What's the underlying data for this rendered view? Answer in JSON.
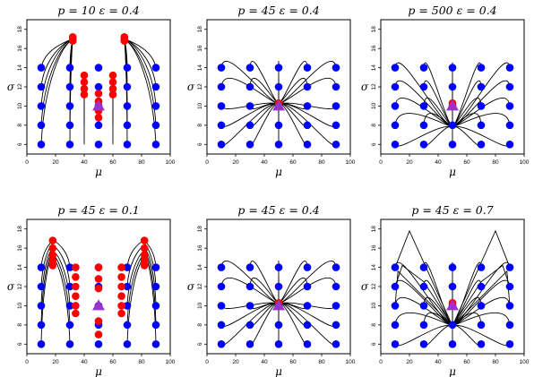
{
  "figure": {
    "background": "#ffffff",
    "colors": {
      "grid_point": "#0000ff",
      "estimate": "#ff0000",
      "truth": "#9933cc",
      "path": "#000000"
    }
  },
  "chart_data": [
    {
      "type": "scatter",
      "title": "p = 10    ε = 0.4",
      "xlabel": "μ",
      "ylabel": "σ",
      "xlim": [
        0,
        100
      ],
      "ylim": [
        5,
        19
      ],
      "xticks": [
        "0",
        "20",
        "40",
        "60",
        "80",
        "100"
      ],
      "yticks": [
        "6",
        "8",
        "10",
        "12",
        "14",
        "16",
        "18"
      ],
      "grid": false,
      "grid_points": {
        "x": [
          10,
          30,
          50,
          70,
          90
        ],
        "y": [
          6,
          8,
          10,
          12,
          14
        ]
      },
      "truth": {
        "x": 50,
        "y": 10
      },
      "estimates": [
        [
          32,
          17.2
        ],
        [
          32,
          17.0
        ],
        [
          32,
          16.8
        ],
        [
          68,
          17.2
        ],
        [
          68,
          17.0
        ],
        [
          68,
          16.8
        ],
        [
          40,
          13.2
        ],
        [
          40,
          12.5
        ],
        [
          40,
          11.8
        ],
        [
          40,
          11.2
        ],
        [
          60,
          13.2
        ],
        [
          60,
          12.5
        ],
        [
          60,
          11.8
        ],
        [
          60,
          11.2
        ],
        [
          50,
          11.3
        ],
        [
          50,
          10.5
        ],
        [
          50,
          9.5
        ],
        [
          50,
          8.8
        ]
      ],
      "paths": [
        [
          [
            10,
            14
          ],
          [
            32,
            17
          ]
        ],
        [
          [
            10,
            12
          ],
          [
            32,
            17
          ]
        ],
        [
          [
            10,
            10
          ],
          [
            31,
            16.9
          ]
        ],
        [
          [
            10,
            8
          ],
          [
            31,
            16.8
          ]
        ],
        [
          [
            10,
            6
          ],
          [
            31,
            16.8
          ]
        ],
        [
          [
            30,
            14
          ],
          [
            32,
            17
          ]
        ],
        [
          [
            30,
            12
          ],
          [
            32,
            17
          ]
        ],
        [
          [
            30,
            10
          ],
          [
            32,
            16.8
          ]
        ],
        [
          [
            30,
            8
          ],
          [
            32,
            16.8
          ]
        ],
        [
          [
            30,
            6
          ],
          [
            32,
            16.8
          ]
        ],
        [
          [
            90,
            14
          ],
          [
            68,
            17
          ]
        ],
        [
          [
            90,
            12
          ],
          [
            68,
            17
          ]
        ],
        [
          [
            90,
            10
          ],
          [
            69,
            16.9
          ]
        ],
        [
          [
            90,
            8
          ],
          [
            69,
            16.8
          ]
        ],
        [
          [
            90,
            6
          ],
          [
            69,
            16.8
          ]
        ],
        [
          [
            70,
            14
          ],
          [
            68,
            17
          ]
        ],
        [
          [
            70,
            12
          ],
          [
            68,
            17
          ]
        ],
        [
          [
            70,
            10
          ],
          [
            68,
            16.8
          ]
        ],
        [
          [
            70,
            8
          ],
          [
            68,
            16.8
          ]
        ],
        [
          [
            70,
            6
          ],
          [
            68,
            16.8
          ]
        ],
        [
          [
            40,
            12
          ],
          [
            40,
            13
          ]
        ],
        [
          [
            40,
            10
          ],
          [
            40,
            12
          ]
        ],
        [
          [
            40,
            8
          ],
          [
            40,
            11.5
          ]
        ],
        [
          [
            40,
            6
          ],
          [
            40,
            11.2
          ]
        ],
        [
          [
            60,
            12
          ],
          [
            60,
            13
          ]
        ],
        [
          [
            60,
            10
          ],
          [
            60,
            12
          ]
        ],
        [
          [
            60,
            8
          ],
          [
            60,
            11.5
          ]
        ],
        [
          [
            60,
            6
          ],
          [
            60,
            11.2
          ]
        ]
      ]
    },
    {
      "type": "scatter",
      "title": "p = 45    ε = 0.4",
      "xlabel": "μ",
      "ylabel": "σ",
      "xlim": [
        0,
        100
      ],
      "ylim": [
        5,
        19
      ],
      "xticks": [
        "0",
        "20",
        "40",
        "60",
        "80",
        "100"
      ],
      "yticks": [
        "6",
        "8",
        "10",
        "12",
        "14",
        "16",
        "18"
      ],
      "grid": false,
      "grid_points": {
        "x": [
          10,
          30,
          50,
          70,
          90
        ],
        "y": [
          6,
          8,
          10,
          12,
          14
        ]
      },
      "truth": {
        "x": 50,
        "y": 10
      },
      "estimates": [
        [
          50,
          10.3
        ]
      ],
      "converge_to": [
        50,
        10.2
      ],
      "paths": []
    },
    {
      "type": "scatter",
      "title": "p = 500    ε = 0.4",
      "xlabel": "μ",
      "ylabel": "σ",
      "xlim": [
        0,
        100
      ],
      "ylim": [
        5,
        19
      ],
      "xticks": [
        "0",
        "20",
        "40",
        "60",
        "80",
        "100"
      ],
      "yticks": [
        "6",
        "8",
        "10",
        "12",
        "14",
        "16",
        "18"
      ],
      "grid": false,
      "grid_points": {
        "x": [
          10,
          30,
          50,
          70,
          90
        ],
        "y": [
          6,
          8,
          10,
          12,
          14
        ]
      },
      "truth": {
        "x": 50,
        "y": 10
      },
      "estimates": [
        [
          50,
          10.3
        ]
      ],
      "converge_to": [
        50,
        7.8
      ],
      "paths": []
    },
    {
      "type": "scatter",
      "title": "p = 45    ε = 0.1",
      "xlabel": "μ",
      "ylabel": "σ",
      "xlim": [
        0,
        100
      ],
      "ylim": [
        5,
        19
      ],
      "xticks": [
        "0",
        "20",
        "40",
        "60",
        "80",
        "100"
      ],
      "yticks": [
        "6",
        "8",
        "10",
        "12",
        "14",
        "16",
        "18"
      ],
      "grid": false,
      "grid_points": {
        "x": [
          10,
          30,
          50,
          70,
          90
        ],
        "y": [
          6,
          8,
          10,
          12,
          14
        ]
      },
      "truth": {
        "x": 50,
        "y": 10
      },
      "estimates": [
        [
          18,
          16.8
        ],
        [
          18,
          16.0
        ],
        [
          18,
          15.3
        ],
        [
          18,
          14.7
        ],
        [
          18,
          14.2
        ],
        [
          82,
          16.8
        ],
        [
          82,
          16.0
        ],
        [
          82,
          15.3
        ],
        [
          82,
          14.7
        ],
        [
          82,
          14.2
        ],
        [
          34,
          14.0
        ],
        [
          34,
          13.0
        ],
        [
          34,
          12.0
        ],
        [
          34,
          11.0
        ],
        [
          34,
          10.0
        ],
        [
          34,
          9.2
        ],
        [
          66,
          14.0
        ],
        [
          66,
          13.0
        ],
        [
          66,
          12.0
        ],
        [
          66,
          11.0
        ],
        [
          66,
          10.0
        ],
        [
          66,
          9.2
        ],
        [
          50,
          14.0
        ],
        [
          50,
          12.8
        ],
        [
          50,
          11.8
        ],
        [
          50,
          8.4
        ],
        [
          50,
          7.0
        ]
      ],
      "paths": [
        [
          [
            10,
            14
          ],
          [
            18,
            16.8
          ]
        ],
        [
          [
            10,
            12
          ],
          [
            18,
            16.5
          ]
        ],
        [
          [
            10,
            10
          ],
          [
            17,
            15.8
          ]
        ],
        [
          [
            10,
            8
          ],
          [
            17,
            15.4
          ]
        ],
        [
          [
            10,
            6
          ],
          [
            17,
            15.0
          ]
        ],
        [
          [
            30,
            14
          ],
          [
            19,
            16.8
          ]
        ],
        [
          [
            30,
            12
          ],
          [
            19,
            16.2
          ]
        ],
        [
          [
            30,
            10
          ],
          [
            19,
            15.6
          ]
        ],
        [
          [
            30,
            8
          ],
          [
            19,
            15.2
          ]
        ],
        [
          [
            30,
            6
          ],
          [
            19,
            14.8
          ]
        ],
        [
          [
            90,
            14
          ],
          [
            82,
            16.8
          ]
        ],
        [
          [
            90,
            12
          ],
          [
            82,
            16.5
          ]
        ],
        [
          [
            90,
            10
          ],
          [
            83,
            15.8
          ]
        ],
        [
          [
            90,
            8
          ],
          [
            83,
            15.4
          ]
        ],
        [
          [
            90,
            6
          ],
          [
            83,
            15.0
          ]
        ],
        [
          [
            70,
            14
          ],
          [
            81,
            16.8
          ]
        ],
        [
          [
            70,
            12
          ],
          [
            81,
            16.2
          ]
        ],
        [
          [
            70,
            10
          ],
          [
            81,
            15.6
          ]
        ],
        [
          [
            70,
            8
          ],
          [
            81,
            15.2
          ]
        ],
        [
          [
            70,
            6
          ],
          [
            81,
            14.8
          ]
        ]
      ]
    },
    {
      "type": "scatter",
      "title": "p = 45    ε = 0.4",
      "xlabel": "μ",
      "ylabel": "σ",
      "xlim": [
        0,
        100
      ],
      "ylim": [
        5,
        19
      ],
      "xticks": [
        "0",
        "20",
        "40",
        "60",
        "80",
        "100"
      ],
      "yticks": [
        "6",
        "8",
        "10",
        "12",
        "14",
        "16",
        "18"
      ],
      "grid": false,
      "grid_points": {
        "x": [
          10,
          30,
          50,
          70,
          90
        ],
        "y": [
          6,
          8,
          10,
          12,
          14
        ]
      },
      "truth": {
        "x": 50,
        "y": 10
      },
      "estimates": [
        [
          50,
          10.3
        ]
      ],
      "converge_to": [
        50,
        10.2
      ],
      "paths": []
    },
    {
      "type": "scatter",
      "title": "p = 45    ε = 0.7",
      "xlabel": "μ",
      "ylabel": "σ",
      "xlim": [
        0,
        100
      ],
      "ylim": [
        5,
        19
      ],
      "xticks": [
        "0",
        "20",
        "40",
        "60",
        "80",
        "100"
      ],
      "yticks": [
        "6",
        "8",
        "10",
        "12",
        "14",
        "16",
        "18"
      ],
      "grid": false,
      "grid_points": {
        "x": [
          10,
          30,
          50,
          70,
          90
        ],
        "y": [
          6,
          8,
          10,
          12,
          14
        ]
      },
      "truth": {
        "x": 50,
        "y": 10
      },
      "estimates": [
        [
          50,
          10.3
        ]
      ],
      "converge_to": [
        50,
        7.9
      ],
      "paths": [
        [
          [
            10,
            14
          ],
          [
            20,
            17.8
          ],
          [
            50,
            7.9
          ]
        ],
        [
          [
            90,
            14
          ],
          [
            80,
            17.8
          ],
          [
            50,
            7.9
          ]
        ],
        [
          [
            10,
            12
          ],
          [
            15,
            14.2
          ],
          [
            30,
            12.5
          ],
          [
            50,
            7.9
          ]
        ],
        [
          [
            90,
            12
          ],
          [
            85,
            14.2
          ],
          [
            70,
            12.5
          ],
          [
            50,
            7.9
          ]
        ],
        [
          [
            10,
            10
          ],
          [
            12,
            13.6
          ],
          [
            50,
            7.9
          ]
        ],
        [
          [
            90,
            10
          ],
          [
            88,
            13.6
          ],
          [
            50,
            7.9
          ]
        ]
      ]
    }
  ]
}
